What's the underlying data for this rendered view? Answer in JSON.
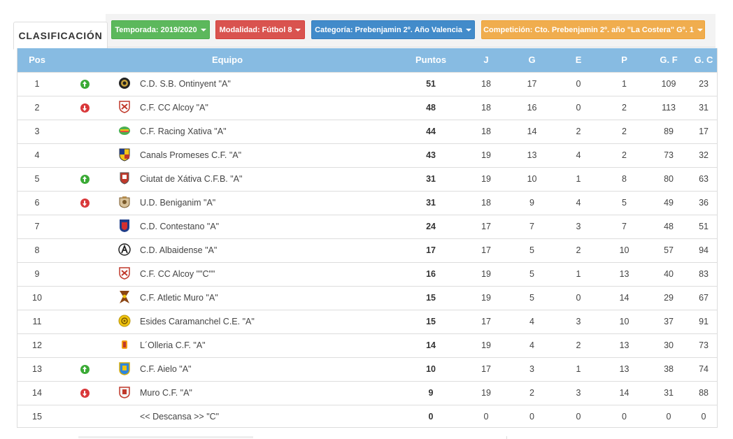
{
  "tab": {
    "label": "CLASIFICACIÓN"
  },
  "filters": {
    "season": "Temporada: 2019/2020",
    "mode": "Modalidad: Fútbol 8",
    "category": "Categoría: Prebenjamin 2º. Año Valencia",
    "competition": "Competición: Cto. Prebenjamin 2º. año \"La Costera\" Gº. 1"
  },
  "colors": {
    "header": "#87bbe2",
    "up": "#3aaa35",
    "down": "#d9383a"
  },
  "table": {
    "headers": [
      "Pos",
      "Equipo",
      "Puntos",
      "J",
      "G",
      "E",
      "P",
      "G. F",
      "G. C"
    ],
    "rows": [
      {
        "pos": "1",
        "trend": "up",
        "crest": "ontinyent-crest",
        "team": "C.D. S.B. Ontinyent \"A\"",
        "pts": "51",
        "j": "18",
        "g": "17",
        "e": "0",
        "p": "1",
        "gf": "109",
        "gc": "23"
      },
      {
        "pos": "2",
        "trend": "down",
        "crest": "alcoy-crest",
        "team": "C.F. CC Alcoy \"A\"",
        "pts": "48",
        "j": "18",
        "g": "16",
        "e": "0",
        "p": "2",
        "gf": "113",
        "gc": "31"
      },
      {
        "pos": "3",
        "trend": "",
        "crest": "racing-xativa-crest",
        "team": "C.F. Racing Xativa \"A\"",
        "pts": "44",
        "j": "18",
        "g": "14",
        "e": "2",
        "p": "2",
        "gf": "89",
        "gc": "17"
      },
      {
        "pos": "4",
        "trend": "",
        "crest": "canals-crest",
        "team": "Canals Promeses C.F. \"A\"",
        "pts": "43",
        "j": "19",
        "g": "13",
        "e": "4",
        "p": "2",
        "gf": "73",
        "gc": "32"
      },
      {
        "pos": "5",
        "trend": "up",
        "crest": "ciutat-xativa-crest",
        "team": "Ciutat de Xátiva C.F.B. \"A\"",
        "pts": "31",
        "j": "19",
        "g": "10",
        "e": "1",
        "p": "8",
        "gf": "80",
        "gc": "63"
      },
      {
        "pos": "6",
        "trend": "down",
        "crest": "beniganim-crest",
        "team": "U.D. Beniganim \"A\"",
        "pts": "31",
        "j": "18",
        "g": "9",
        "e": "4",
        "p": "5",
        "gf": "49",
        "gc": "36"
      },
      {
        "pos": "7",
        "trend": "",
        "crest": "contestano-crest",
        "team": "C.D. Contestano \"A\"",
        "pts": "24",
        "j": "17",
        "g": "7",
        "e": "3",
        "p": "7",
        "gf": "48",
        "gc": "51"
      },
      {
        "pos": "8",
        "trend": "",
        "crest": "albaidense-crest",
        "team": "C.D. Albaidense \"A\"",
        "pts": "17",
        "j": "17",
        "g": "5",
        "e": "2",
        "p": "10",
        "gf": "57",
        "gc": "94"
      },
      {
        "pos": "9",
        "trend": "",
        "crest": "alcoy-crest",
        "team": "C.F. CC Alcoy \"\"C\"\"",
        "pts": "16",
        "j": "19",
        "g": "5",
        "e": "1",
        "p": "13",
        "gf": "40",
        "gc": "83"
      },
      {
        "pos": "10",
        "trend": "",
        "crest": "atletic-muro-crest",
        "team": "C.F. Atletic Muro \"A\"",
        "pts": "15",
        "j": "19",
        "g": "5",
        "e": "0",
        "p": "14",
        "gf": "29",
        "gc": "67"
      },
      {
        "pos": "11",
        "trend": "",
        "crest": "esides-crest",
        "team": "Esides Caramanchel C.E. \"A\"",
        "pts": "15",
        "j": "17",
        "g": "4",
        "e": "3",
        "p": "10",
        "gf": "37",
        "gc": "91"
      },
      {
        "pos": "12",
        "trend": "",
        "crest": "olleria-crest",
        "team": "L´Olleria C.F. \"A\"",
        "pts": "14",
        "j": "19",
        "g": "4",
        "e": "2",
        "p": "13",
        "gf": "30",
        "gc": "73"
      },
      {
        "pos": "13",
        "trend": "up",
        "crest": "aielo-crest",
        "team": "C.F. Aielo \"A\"",
        "pts": "10",
        "j": "17",
        "g": "3",
        "e": "1",
        "p": "13",
        "gf": "38",
        "gc": "74"
      },
      {
        "pos": "14",
        "trend": "down",
        "crest": "muro-crest",
        "team": "Muro C.F. \"A\"",
        "pts": "9",
        "j": "19",
        "g": "2",
        "e": "3",
        "p": "14",
        "gf": "31",
        "gc": "88"
      },
      {
        "pos": "15",
        "trend": "",
        "crest": "",
        "team": "<< Descansa >> \"C\"",
        "pts": "0",
        "j": "0",
        "g": "0",
        "e": "0",
        "p": "0",
        "gf": "0",
        "gc": "0"
      }
    ]
  }
}
